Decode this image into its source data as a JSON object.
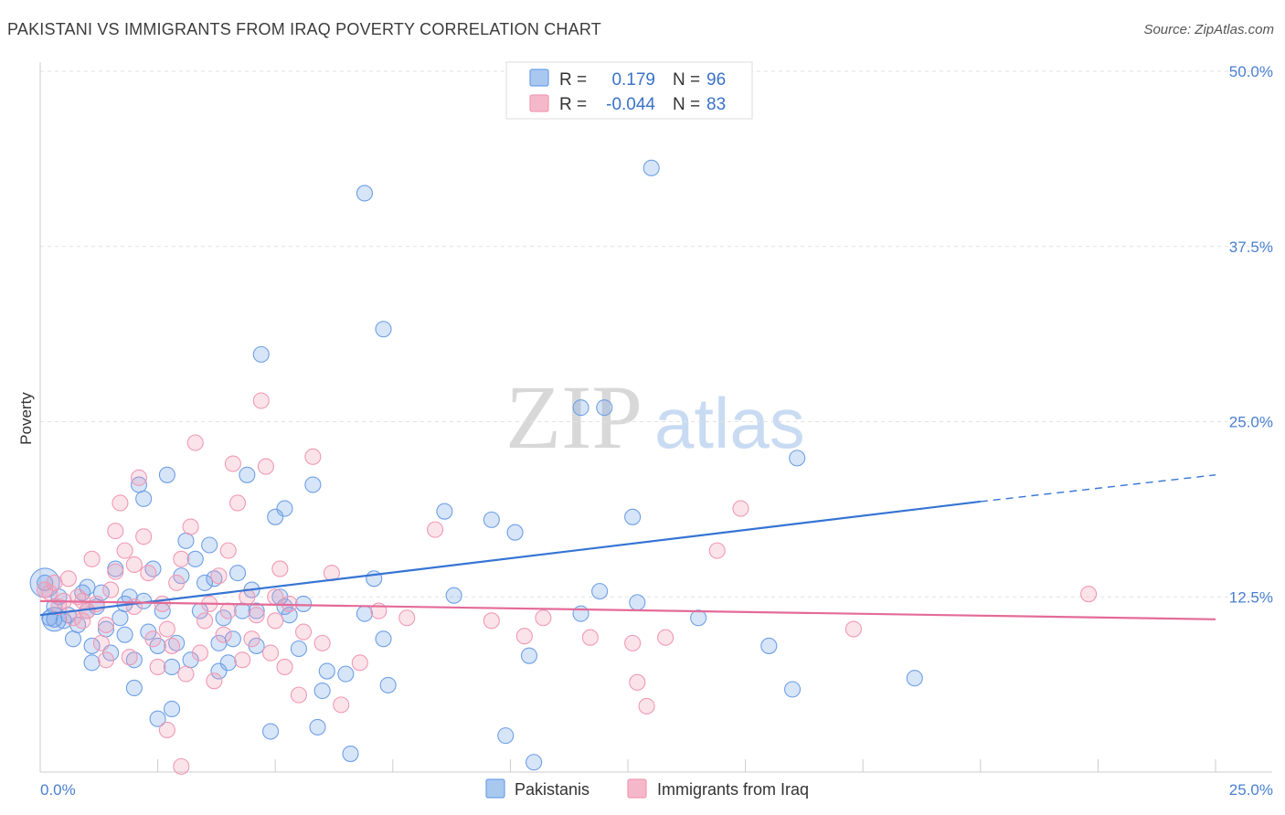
{
  "title": "PAKISTANI VS IMMIGRANTS FROM IRAQ POVERTY CORRELATION CHART",
  "source": "Source: ZipAtlas.com",
  "watermark": {
    "zip": "ZIP",
    "atlas": "atlas"
  },
  "legend": {
    "rows": [
      {
        "r_label": "R =",
        "r_value": "0.179",
        "n_label": "N =",
        "n_value": "96",
        "color": "#a9c8f0"
      },
      {
        "r_label": "R =",
        "r_value": "-0.044",
        "n_label": "N =",
        "n_value": "83",
        "color": "#f5b8cb"
      }
    ]
  },
  "chart_data": {
    "type": "scatter",
    "ylabel": "Poverty",
    "xlim": [
      0,
      25
    ],
    "ylim": [
      0,
      50
    ],
    "x_tick_labels": [
      "0.0%",
      "25.0%"
    ],
    "y_tick_labels": [
      "12.5%",
      "25.0%",
      "37.5%",
      "50.0%"
    ],
    "y_ticks": [
      12.5,
      25.0,
      37.5,
      50.0
    ],
    "grid": true,
    "legend_placement": "top-center",
    "series": [
      {
        "name": "Pakistanis",
        "color": "#6fa0e6",
        "line_color": "#3574d4",
        "trend": {
          "x0": 0,
          "y0": 11.2,
          "x1": 20,
          "y1": 19.3,
          "dash_x1": 25,
          "dash_y1": 21.2
        },
        "points": [
          [
            0.1,
            13.5
          ],
          [
            0.2,
            11.0
          ],
          [
            0.3,
            11.8
          ],
          [
            0.4,
            12.5
          ],
          [
            0.5,
            10.8
          ],
          [
            0.6,
            11.2
          ],
          [
            0.7,
            9.5
          ],
          [
            0.8,
            10.5
          ],
          [
            0.9,
            12.8
          ],
          [
            1.0,
            11.5
          ],
          [
            1.1,
            9.0
          ],
          [
            1.1,
            7.8
          ],
          [
            1.2,
            11.8
          ],
          [
            1.3,
            12.8
          ],
          [
            1.4,
            10.2
          ],
          [
            1.5,
            8.5
          ],
          [
            1.6,
            14.5
          ],
          [
            1.7,
            11.0
          ],
          [
            1.8,
            12.0
          ],
          [
            1.8,
            9.8
          ],
          [
            1.9,
            12.5
          ],
          [
            2.0,
            8.0
          ],
          [
            2.0,
            6.0
          ],
          [
            2.1,
            20.5
          ],
          [
            2.2,
            12.2
          ],
          [
            2.3,
            10.0
          ],
          [
            2.4,
            14.5
          ],
          [
            2.5,
            9.0
          ],
          [
            2.5,
            3.8
          ],
          [
            2.6,
            11.5
          ],
          [
            2.7,
            21.2
          ],
          [
            2.8,
            4.5
          ],
          [
            2.8,
            7.5
          ],
          [
            2.9,
            9.2
          ],
          [
            3.0,
            14.0
          ],
          [
            3.1,
            16.5
          ],
          [
            3.2,
            8.0
          ],
          [
            3.3,
            15.2
          ],
          [
            3.4,
            11.5
          ],
          [
            3.5,
            13.5
          ],
          [
            3.6,
            16.2
          ],
          [
            3.7,
            13.8
          ],
          [
            3.8,
            9.2
          ],
          [
            3.9,
            11.0
          ],
          [
            4.0,
            7.8
          ],
          [
            4.1,
            9.5
          ],
          [
            4.2,
            14.2
          ],
          [
            4.3,
            11.5
          ],
          [
            4.4,
            21.2
          ],
          [
            4.5,
            13.0
          ],
          [
            4.6,
            11.5
          ],
          [
            4.6,
            9.0
          ],
          [
            4.7,
            29.8
          ],
          [
            4.9,
            2.9
          ],
          [
            5.0,
            18.2
          ],
          [
            5.1,
            12.5
          ],
          [
            5.2,
            18.8
          ],
          [
            5.2,
            11.8
          ],
          [
            5.3,
            11.2
          ],
          [
            5.5,
            8.8
          ],
          [
            5.6,
            12.0
          ],
          [
            5.8,
            20.5
          ],
          [
            5.9,
            3.2
          ],
          [
            6.0,
            5.8
          ],
          [
            6.1,
            7.2
          ],
          [
            6.6,
            1.3
          ],
          [
            6.5,
            7.0
          ],
          [
            6.9,
            11.3
          ],
          [
            7.1,
            13.8
          ],
          [
            7.3,
            9.5
          ],
          [
            7.4,
            6.2
          ],
          [
            7.3,
            31.6
          ],
          [
            6.9,
            41.3
          ],
          [
            8.6,
            18.6
          ],
          [
            8.8,
            12.6
          ],
          [
            9.6,
            18.0
          ],
          [
            9.9,
            2.6
          ],
          [
            10.1,
            17.1
          ],
          [
            10.4,
            8.3
          ],
          [
            10.5,
            0.7
          ],
          [
            11.5,
            26.0
          ],
          [
            11.5,
            11.3
          ],
          [
            11.9,
            12.9
          ],
          [
            12.0,
            26.0
          ],
          [
            13.0,
            43.1
          ],
          [
            12.6,
            18.2
          ],
          [
            12.7,
            12.1
          ],
          [
            14.0,
            11.0
          ],
          [
            15.5,
            9.0
          ],
          [
            16.1,
            22.4
          ],
          [
            16.0,
            5.9
          ],
          [
            18.6,
            6.7
          ],
          [
            1.0,
            13.2
          ],
          [
            0.3,
            10.9
          ],
          [
            2.2,
            19.5
          ],
          [
            3.8,
            7.2
          ]
        ]
      },
      {
        "name": "Immigrants from Iraq",
        "color": "#f09ab5",
        "line_color": "#e46b98",
        "trend": {
          "x0": 0,
          "y0": 12.2,
          "x1": 25,
          "y1": 10.9
        },
        "points": [
          [
            0.1,
            13.0
          ],
          [
            0.2,
            12.8
          ],
          [
            0.3,
            13.5
          ],
          [
            0.4,
            11.8
          ],
          [
            0.5,
            12.2
          ],
          [
            0.6,
            13.8
          ],
          [
            0.7,
            11.0
          ],
          [
            0.8,
            12.5
          ],
          [
            0.9,
            10.8
          ],
          [
            1.0,
            11.5
          ],
          [
            1.1,
            15.2
          ],
          [
            1.2,
            12.0
          ],
          [
            1.3,
            9.2
          ],
          [
            1.4,
            10.5
          ],
          [
            1.5,
            13.0
          ],
          [
            1.6,
            17.2
          ],
          [
            1.7,
            19.2
          ],
          [
            1.8,
            15.8
          ],
          [
            1.9,
            8.2
          ],
          [
            2.0,
            11.8
          ],
          [
            2.1,
            21.0
          ],
          [
            2.2,
            16.8
          ],
          [
            2.3,
            14.2
          ],
          [
            2.4,
            9.5
          ],
          [
            2.5,
            7.5
          ],
          [
            2.6,
            12.0
          ],
          [
            2.7,
            10.2
          ],
          [
            2.8,
            9.0
          ],
          [
            2.9,
            13.5
          ],
          [
            3.0,
            15.2
          ],
          [
            3.1,
            7.0
          ],
          [
            3.2,
            17.5
          ],
          [
            3.3,
            23.5
          ],
          [
            3.4,
            8.5
          ],
          [
            3.5,
            10.8
          ],
          [
            3.6,
            12.0
          ],
          [
            3.7,
            6.5
          ],
          [
            3.8,
            14.0
          ],
          [
            3.9,
            9.8
          ],
          [
            4.0,
            11.5
          ],
          [
            4.1,
            22.0
          ],
          [
            4.2,
            19.2
          ],
          [
            4.3,
            8.0
          ],
          [
            4.4,
            12.5
          ],
          [
            4.5,
            9.5
          ],
          [
            4.6,
            11.2
          ],
          [
            4.7,
            26.5
          ],
          [
            4.8,
            21.8
          ],
          [
            4.9,
            8.5
          ],
          [
            5.0,
            10.8
          ],
          [
            5.1,
            14.5
          ],
          [
            5.2,
            7.5
          ],
          [
            5.3,
            12.0
          ],
          [
            5.5,
            5.5
          ],
          [
            5.6,
            10.0
          ],
          [
            5.8,
            22.5
          ],
          [
            6.0,
            9.2
          ],
          [
            6.2,
            14.2
          ],
          [
            6.4,
            4.8
          ],
          [
            6.8,
            7.8
          ],
          [
            7.2,
            11.5
          ],
          [
            7.8,
            11.0
          ],
          [
            8.4,
            17.3
          ],
          [
            9.6,
            10.8
          ],
          [
            10.3,
            9.7
          ],
          [
            10.7,
            11.0
          ],
          [
            11.7,
            9.6
          ],
          [
            12.6,
            9.2
          ],
          [
            12.9,
            4.7
          ],
          [
            12.7,
            6.4
          ],
          [
            13.3,
            9.6
          ],
          [
            14.4,
            15.8
          ],
          [
            14.9,
            18.8
          ],
          [
            17.3,
            10.2
          ],
          [
            22.3,
            12.7
          ],
          [
            3.0,
            0.4
          ],
          [
            2.0,
            14.8
          ],
          [
            1.4,
            8.0
          ],
          [
            0.9,
            12.2
          ],
          [
            4.0,
            15.8
          ],
          [
            2.7,
            3.0
          ],
          [
            5.0,
            12.5
          ],
          [
            1.6,
            14.3
          ]
        ]
      }
    ]
  },
  "bottom_legend": [
    "Pakistanis",
    "Immigrants from Iraq"
  ]
}
